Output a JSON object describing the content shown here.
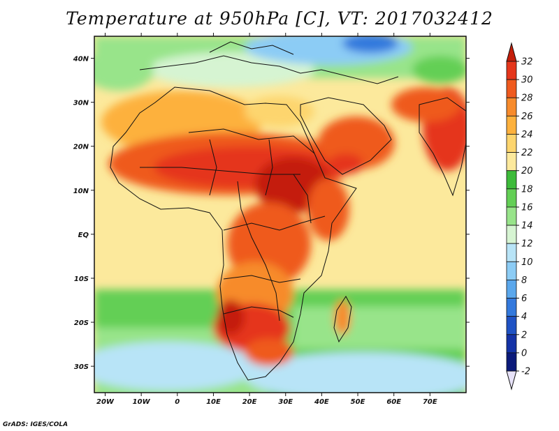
{
  "title": "Temperature at 950hPa [C], VT: 2017032412",
  "credit": "GrADS: IGES/COLA",
  "map": {
    "lon_range": [
      -23,
      80
    ],
    "lat_range": [
      -36,
      45
    ],
    "x_ticks": [
      "20W",
      "10W",
      "0",
      "10E",
      "20E",
      "30E",
      "40E",
      "50E",
      "60E",
      "70E"
    ],
    "y_ticks": [
      "40N",
      "30N",
      "20N",
      "10N",
      "EQ",
      "10S",
      "20S",
      "30S"
    ]
  },
  "colorbar": {
    "labels": [
      "32",
      "30",
      "28",
      "26",
      "24",
      "22",
      "20",
      "18",
      "16",
      "14",
      "12",
      "10",
      "8",
      "6",
      "4",
      "2",
      "0",
      "-2"
    ],
    "colors": [
      "#c41e0a",
      "#e5361b",
      "#ef5a1e",
      "#f78b2c",
      "#fdb13d",
      "#fdd56e",
      "#fce99c",
      "#3dbb3a",
      "#63cf55",
      "#98e48a",
      "#d6f4d2",
      "#b8e4f7",
      "#8cccf5",
      "#5aa7ec",
      "#3379dd",
      "#1f52c4",
      "#1432a6",
      "#0b1a7a",
      "#e7e2f8"
    ]
  }
}
